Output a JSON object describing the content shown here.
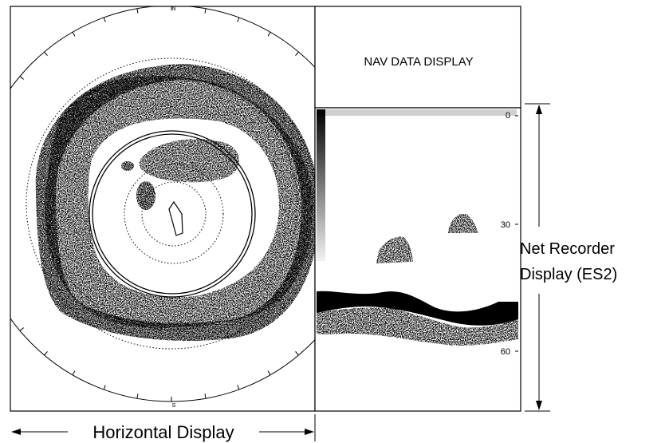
{
  "compass": {
    "north": "N",
    "south": "S"
  },
  "nav_panel": {
    "title": "NAV DATA DISPLAY"
  },
  "depth_scale": {
    "top": "0",
    "mid": "30",
    "bottom": "60"
  },
  "net_recorder_label": {
    "line1": "Net Recorder",
    "line2": "Display (ES2)"
  },
  "horizontal_label": "Horizontal Display"
}
